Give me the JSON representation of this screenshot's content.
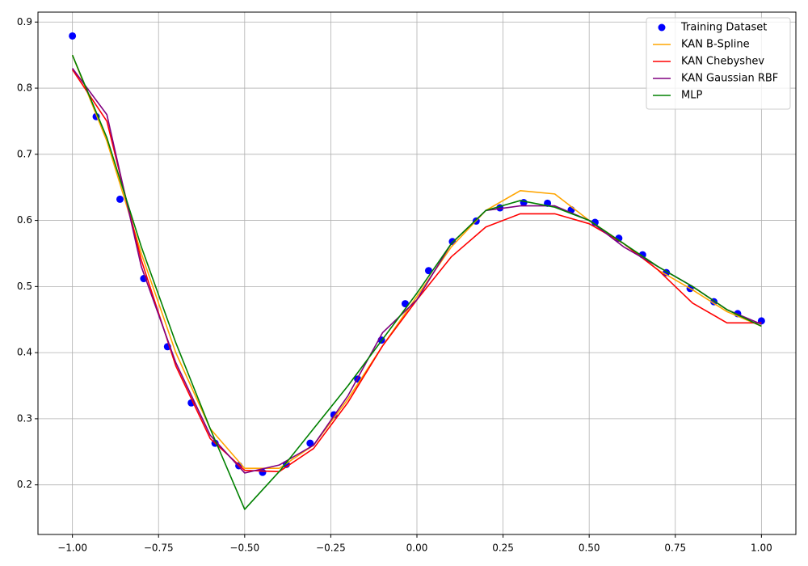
{
  "chart_data": {
    "type": "line",
    "xlim": [
      -1.1,
      1.1
    ],
    "ylim": [
      0.125,
      0.915
    ],
    "xticks": [
      {
        "value": -1,
        "label": "−1.00"
      },
      {
        "value": -0.75,
        "label": "−0.75"
      },
      {
        "value": -0.5,
        "label": "−0.50"
      },
      {
        "value": -0.25,
        "label": "−0.25"
      },
      {
        "value": 0,
        "label": "0.00"
      },
      {
        "value": 0.25,
        "label": "0.25"
      },
      {
        "value": 0.5,
        "label": "0.50"
      },
      {
        "value": 0.75,
        "label": "0.75"
      },
      {
        "value": 1,
        "label": "1.00"
      }
    ],
    "yticks": [
      0.2,
      0.3,
      0.4,
      0.5,
      0.6,
      0.7,
      0.8,
      0.9
    ],
    "grid": true,
    "legend": "upper right",
    "series": [
      {
        "name": "Training Dataset",
        "type": "scatter",
        "color": "#0000ff",
        "x": [
          -1,
          -0.931,
          -0.862,
          -0.793,
          -0.724,
          -0.655,
          -0.586,
          -0.517,
          -0.448,
          -0.379,
          -0.31,
          -0.241,
          -0.172,
          -0.103,
          -0.034,
          0.034,
          0.103,
          0.172,
          0.241,
          0.31,
          0.379,
          0.448,
          0.517,
          0.586,
          0.655,
          0.724,
          0.793,
          0.862,
          0.931,
          1
        ],
        "values": [
          0.879,
          0.757,
          0.632,
          0.512,
          0.409,
          0.324,
          0.263,
          0.229,
          0.219,
          0.231,
          0.263,
          0.306,
          0.36,
          0.419,
          0.474,
          0.524,
          0.568,
          0.599,
          0.619,
          0.627,
          0.626,
          0.616,
          0.597,
          0.573,
          0.548,
          0.521,
          0.497,
          0.477,
          0.459,
          0.448
        ]
      },
      {
        "name": "KAN B-Spline",
        "type": "line",
        "color": "#ffa500",
        "x": [
          -1,
          -0.9,
          -0.8,
          -0.7,
          -0.6,
          -0.5,
          -0.4,
          -0.3,
          -0.2,
          -0.1,
          0,
          0.1,
          0.2,
          0.3,
          0.4,
          0.5,
          0.6,
          0.7,
          0.8,
          0.9,
          1
        ],
        "values": [
          0.85,
          0.72,
          0.55,
          0.4,
          0.285,
          0.225,
          0.225,
          0.26,
          0.33,
          0.41,
          0.485,
          0.56,
          0.615,
          0.645,
          0.64,
          0.6,
          0.565,
          0.525,
          0.495,
          0.462,
          0.44
        ]
      },
      {
        "name": "KAN Chebyshev",
        "type": "line",
        "color": "#ff0000",
        "x": [
          -1,
          -0.9,
          -0.8,
          -0.7,
          -0.6,
          -0.5,
          -0.4,
          -0.3,
          -0.2,
          -0.1,
          0,
          0.1,
          0.2,
          0.3,
          0.4,
          0.5,
          0.6,
          0.7,
          0.8,
          0.9,
          1
        ],
        "values": [
          0.828,
          0.75,
          0.54,
          0.38,
          0.27,
          0.222,
          0.22,
          0.255,
          0.325,
          0.41,
          0.48,
          0.545,
          0.59,
          0.61,
          0.61,
          0.595,
          0.565,
          0.525,
          0.475,
          0.445,
          0.445
        ]
      },
      {
        "name": "KAN Gaussian RBF",
        "type": "line",
        "color": "#800080",
        "x": [
          -1,
          -0.9,
          -0.8,
          -0.7,
          -0.6,
          -0.5,
          -0.4,
          -0.3,
          -0.2,
          -0.1,
          0,
          0.1,
          0.2,
          0.3,
          0.4,
          0.5,
          0.6,
          0.7,
          0.8,
          0.9,
          1
        ],
        "values": [
          0.83,
          0.76,
          0.53,
          0.385,
          0.275,
          0.218,
          0.23,
          0.26,
          0.335,
          0.43,
          0.48,
          0.565,
          0.615,
          0.622,
          0.622,
          0.6,
          0.56,
          0.53,
          0.5,
          0.465,
          0.443
        ]
      },
      {
        "name": "MLP",
        "type": "line",
        "color": "#008000",
        "x": [
          -1,
          -0.9,
          -0.8,
          -0.7,
          -0.6,
          -0.5,
          -0.4,
          -0.3,
          -0.2,
          -0.1,
          0,
          0.1,
          0.2,
          0.3,
          0.4,
          0.5,
          0.6,
          0.7,
          0.8,
          0.9,
          1
        ],
        "values": [
          0.85,
          0.725,
          0.56,
          0.415,
          0.285,
          0.163,
          0.22,
          0.285,
          0.35,
          0.42,
          0.49,
          0.565,
          0.615,
          0.63,
          0.62,
          0.6,
          0.565,
          0.53,
          0.5,
          0.465,
          0.44
        ]
      }
    ]
  }
}
